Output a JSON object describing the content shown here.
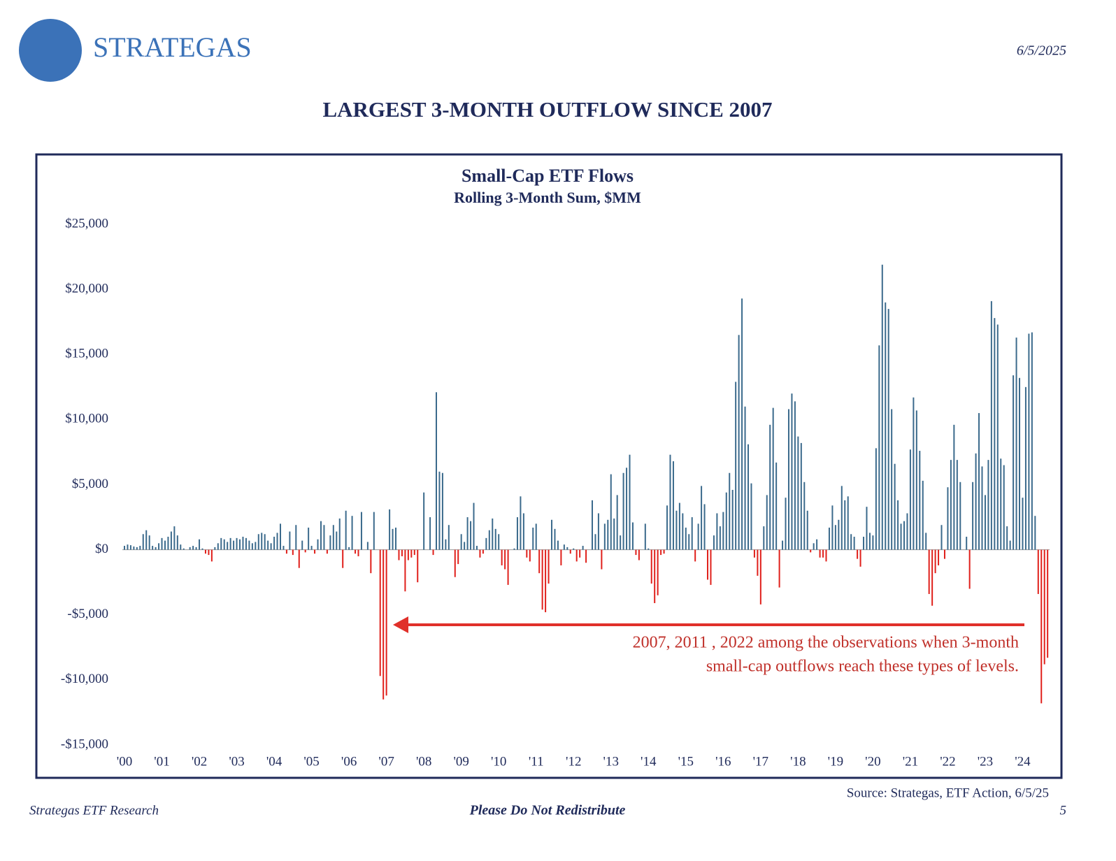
{
  "brand": "STRATEGAS",
  "date": "6/5/2025",
  "headline": "LARGEST 3-MONTH OUTFLOW SINCE 2007",
  "chart_data": {
    "type": "bar",
    "title": "Small-Cap ETF Flows",
    "subtitle": "Rolling 3-Month Sum, $MM",
    "positive_color": "#3b6a8c",
    "negative_color": "#e0201b",
    "ylim": [
      -15000,
      25000
    ],
    "yticks": [
      {
        "value": -15000,
        "label": "-$15,000"
      },
      {
        "value": -10000,
        "label": "-$10,000"
      },
      {
        "value": -5000,
        "label": "-$5,000"
      },
      {
        "value": 0,
        "label": "$0"
      },
      {
        "value": 5000,
        "label": "$5,000"
      },
      {
        "value": 10000,
        "label": "$10,000"
      },
      {
        "value": 15000,
        "label": "$15,000"
      },
      {
        "value": 20000,
        "label": "$20,000"
      },
      {
        "value": 25000,
        "label": "$25,000"
      }
    ],
    "annotation": [
      "2007, 2011 , 2022 among the observations when 3-month",
      "small-cap outflows reach these types of levels."
    ],
    "categories": [
      "'00",
      null,
      null,
      null,
      null,
      null,
      null,
      null,
      null,
      null,
      null,
      null,
      "'01",
      null,
      null,
      null,
      null,
      null,
      null,
      null,
      null,
      null,
      null,
      null,
      "'02",
      null,
      null,
      null,
      null,
      null,
      null,
      null,
      null,
      null,
      null,
      null,
      "'03",
      null,
      null,
      null,
      null,
      null,
      null,
      null,
      null,
      null,
      null,
      null,
      "'04",
      null,
      null,
      null,
      null,
      null,
      null,
      null,
      null,
      null,
      null,
      null,
      "'05",
      null,
      null,
      null,
      null,
      null,
      null,
      null,
      null,
      null,
      null,
      null,
      "'06",
      null,
      null,
      null,
      null,
      null,
      null,
      null,
      null,
      null,
      null,
      null,
      "'07",
      null,
      null,
      null,
      null,
      null,
      null,
      null,
      null,
      null,
      null,
      null,
      "'08",
      null,
      null,
      null,
      null,
      null,
      null,
      null,
      null,
      null,
      null,
      null,
      "'09",
      null,
      null,
      null,
      null,
      null,
      null,
      null,
      null,
      null,
      null,
      null,
      "'10",
      null,
      null,
      null,
      null,
      null,
      null,
      null,
      null,
      null,
      null,
      null,
      "'11",
      null,
      null,
      null,
      null,
      null,
      null,
      null,
      null,
      null,
      null,
      null,
      "'12",
      null,
      null,
      null,
      null,
      null,
      null,
      null,
      null,
      null,
      null,
      null,
      "'13",
      null,
      null,
      null,
      null,
      null,
      null,
      null,
      null,
      null,
      null,
      null,
      "'14",
      null,
      null,
      null,
      null,
      null,
      null,
      null,
      null,
      null,
      null,
      null,
      "'15",
      null,
      null,
      null,
      null,
      null,
      null,
      null,
      null,
      null,
      null,
      null,
      "'16",
      null,
      null,
      null,
      null,
      null,
      null,
      null,
      null,
      null,
      null,
      null,
      "'17",
      null,
      null,
      null,
      null,
      null,
      null,
      null,
      null,
      null,
      null,
      null,
      "'18",
      null,
      null,
      null,
      null,
      null,
      null,
      null,
      null,
      null,
      null,
      null,
      "'19",
      null,
      null,
      null,
      null,
      null,
      null,
      null,
      null,
      null,
      null,
      null,
      "'20",
      null,
      null,
      null,
      null,
      null,
      null,
      null,
      null,
      null,
      null,
      null,
      "'21",
      null,
      null,
      null,
      null,
      null,
      null,
      null,
      null,
      null,
      null,
      null,
      "'22",
      null,
      null,
      null,
      null,
      null,
      null,
      null,
      null,
      null,
      null,
      null,
      "'23",
      null,
      null,
      null,
      null,
      null,
      null,
      null,
      null,
      null,
      null,
      null,
      "'24",
      null,
      null,
      null,
      null,
      null,
      null,
      null,
      null
    ],
    "values": [
      300,
      400,
      350,
      250,
      200,
      300,
      1200,
      1500,
      1100,
      300,
      200,
      500,
      900,
      700,
      1000,
      1400,
      1800,
      1100,
      400,
      100,
      0,
      200,
      300,
      200,
      800,
      100,
      -300,
      -400,
      -900,
      200,
      500,
      900,
      800,
      600,
      900,
      700,
      900,
      800,
      1000,
      900,
      700,
      500,
      600,
      1200,
      1300,
      1200,
      700,
      500,
      1000,
      1300,
      2000,
      300,
      -300,
      1400,
      -400,
      1900,
      -1400,
      700,
      -200,
      1700,
      300,
      -300,
      800,
      2200,
      1900,
      -300,
      1100,
      1900,
      1400,
      2400,
      -1400,
      3000,
      200,
      2600,
      -300,
      -500,
      2900,
      0,
      600,
      -1800,
      2900,
      0,
      -9700,
      -11500,
      -11200,
      3100,
      1600,
      1700,
      -800,
      -500,
      -3200,
      -800,
      -600,
      -400,
      -2500,
      0,
      4400,
      0,
      2500,
      -400,
      12100,
      6000,
      5900,
      800,
      1900,
      0,
      -2100,
      -1100,
      1200,
      600,
      2500,
      2200,
      3600,
      300,
      -600,
      -300,
      900,
      1500,
      2400,
      1600,
      1200,
      -1200,
      -1500,
      -2700,
      0,
      100,
      2500,
      4100,
      2800,
      -600,
      -900,
      1700,
      2000,
      -1800,
      -4600,
      -4800,
      -2600,
      2300,
      1600,
      700,
      -1200,
      400,
      200,
      -300,
      100,
      -900,
      -600,
      300,
      -1000,
      0,
      3800,
      1200,
      2800,
      -1500,
      2000,
      2300,
      5800,
      2400,
      4200,
      1100,
      5900,
      6300,
      7300,
      2100,
      -400,
      -800,
      0,
      2000,
      100,
      -2600,
      -4100,
      -3500,
      -400,
      -300,
      3400,
      7300,
      6800,
      3000,
      3600,
      2800,
      1700,
      1200,
      2500,
      -900,
      2000,
      4900,
      3500,
      -2300,
      -2700,
      1100,
      2800,
      1800,
      2900,
      4400,
      5900,
      4600,
      12900,
      16500,
      19300,
      11000,
      8100,
      5100,
      -600,
      -2000,
      -4200,
      1800,
      4200,
      9600,
      10900,
      6700,
      -2900,
      700,
      4000,
      10800,
      12000,
      11400,
      8700,
      8200,
      5200,
      3000,
      -200,
      500,
      800,
      -600,
      -600,
      -900,
      1700,
      3400,
      1900,
      2300,
      4900,
      3800,
      4100,
      1200,
      1000,
      -700,
      -1300,
      1000,
      3300,
      1300,
      1100,
      7800,
      15700,
      21900,
      19000,
      18500,
      10800,
      6600,
      3800,
      2000,
      2200,
      2800,
      7700,
      11700,
      10700,
      7600,
      5300,
      1300,
      -3400,
      -4300,
      -1800,
      -1200,
      1900,
      -700,
      4800,
      6900,
      9600,
      6900,
      5200,
      0,
      1000,
      -3000,
      5200,
      7400,
      10500,
      6400,
      4200,
      6900,
      19100,
      17800,
      17300,
      7000,
      6500,
      1800,
      700,
      13400,
      16300,
      13200,
      4000,
      12500,
      16600,
      16700,
      2600,
      -3400,
      -11800,
      -8800,
      -8300
    ]
  },
  "source": "Source: Strategas, ETF Action, 6/5/25",
  "footer": {
    "left": "Strategas ETF Research",
    "center": "Please Do Not Redistribute",
    "page": "5"
  }
}
